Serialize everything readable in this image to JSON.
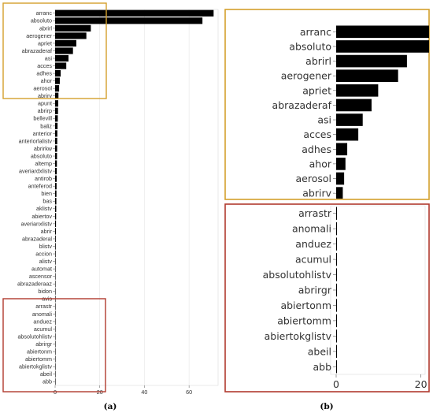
{
  "panels": {
    "a": {
      "caption": "(a)"
    },
    "b": {
      "caption": "(b)"
    }
  },
  "chart_data": [
    {
      "panel": "a",
      "type": "bar",
      "orientation": "horizontal",
      "categories": [
        "arranc",
        "absoluto",
        "abrirl",
        "aerogener",
        "apriet",
        "abrazaderaf",
        "asi",
        "acces",
        "adhes",
        "ahor",
        "aerosol",
        "abrirv",
        "apunt",
        "abrirp",
        "bellevill",
        "baliz",
        "anterior",
        "anteriorlalistv",
        "abrirkw",
        "absoluto",
        "altemp",
        "averiardxlistv",
        "antirob",
        "anteferod",
        "bien",
        "bas",
        "aklistv",
        "abiertov",
        "averianxlistv",
        "abrir",
        "abrazaderal",
        "blistv",
        "accion",
        "alistv",
        "automat",
        "ascensor",
        "abrazaderaaz",
        "bidon",
        "avis",
        "arrastr",
        "anomali",
        "anduez",
        "acumul",
        "absolutohlistv",
        "abrirgr",
        "abiertonm",
        "abiertomm",
        "abiertokglistv",
        "abeil",
        "abb"
      ],
      "values": [
        71,
        66,
        16,
        14,
        9.5,
        8,
        6,
        5,
        2.5,
        2.1,
        1.8,
        1.5,
        1.4,
        1.3,
        1.2,
        1.1,
        1.0,
        0.95,
        0.9,
        0.85,
        0.8,
        0.75,
        0.7,
        0.65,
        0.6,
        0.55,
        0.5,
        0.45,
        0.4,
        0.35,
        0.3,
        0.28,
        0.26,
        0.24,
        0.22,
        0.2,
        0.18,
        0.16,
        0.14,
        0.12,
        0.12,
        0.11,
        0.11,
        0.1,
        0.1,
        0.1,
        0.1,
        0.1,
        0.1,
        0.1
      ],
      "xticks": [
        0,
        20,
        40,
        60
      ],
      "xlim": [
        0,
        73
      ],
      "grid": true,
      "highlight_boxes": [
        {
          "color": "#d4a02c",
          "from": "arranc",
          "to": "abrirv"
        },
        {
          "color": "#b03a2e",
          "from": "avis",
          "to": "abb"
        }
      ]
    },
    {
      "panel": "b",
      "type": "bar",
      "orientation": "horizontal",
      "zoom_of": "a",
      "sub_panels": [
        {
          "border_color": "#d4a02c",
          "categories": [
            "arranc",
            "absoluto",
            "abrirl",
            "aerogener",
            "apriet",
            "abrazaderaf",
            "asi",
            "acces",
            "adhes",
            "ahor",
            "aerosol",
            "abrirv"
          ],
          "values": [
            71,
            66,
            16,
            14,
            9.5,
            8,
            6,
            5,
            2.5,
            2.1,
            1.8,
            1.5
          ]
        },
        {
          "border_color": "#b03a2e",
          "categories": [
            "arrastr",
            "anomali",
            "anduez",
            "acumul",
            "absolutohlistv",
            "abrirgr",
            "abiertonm",
            "abiertomm",
            "abiertokglistv",
            "abeil",
            "abb"
          ],
          "values": [
            0.12,
            0.12,
            0.11,
            0.11,
            0.1,
            0.1,
            0.1,
            0.1,
            0.1,
            0.1,
            0.1
          ],
          "xticks": [
            0,
            20
          ]
        }
      ]
    }
  ]
}
